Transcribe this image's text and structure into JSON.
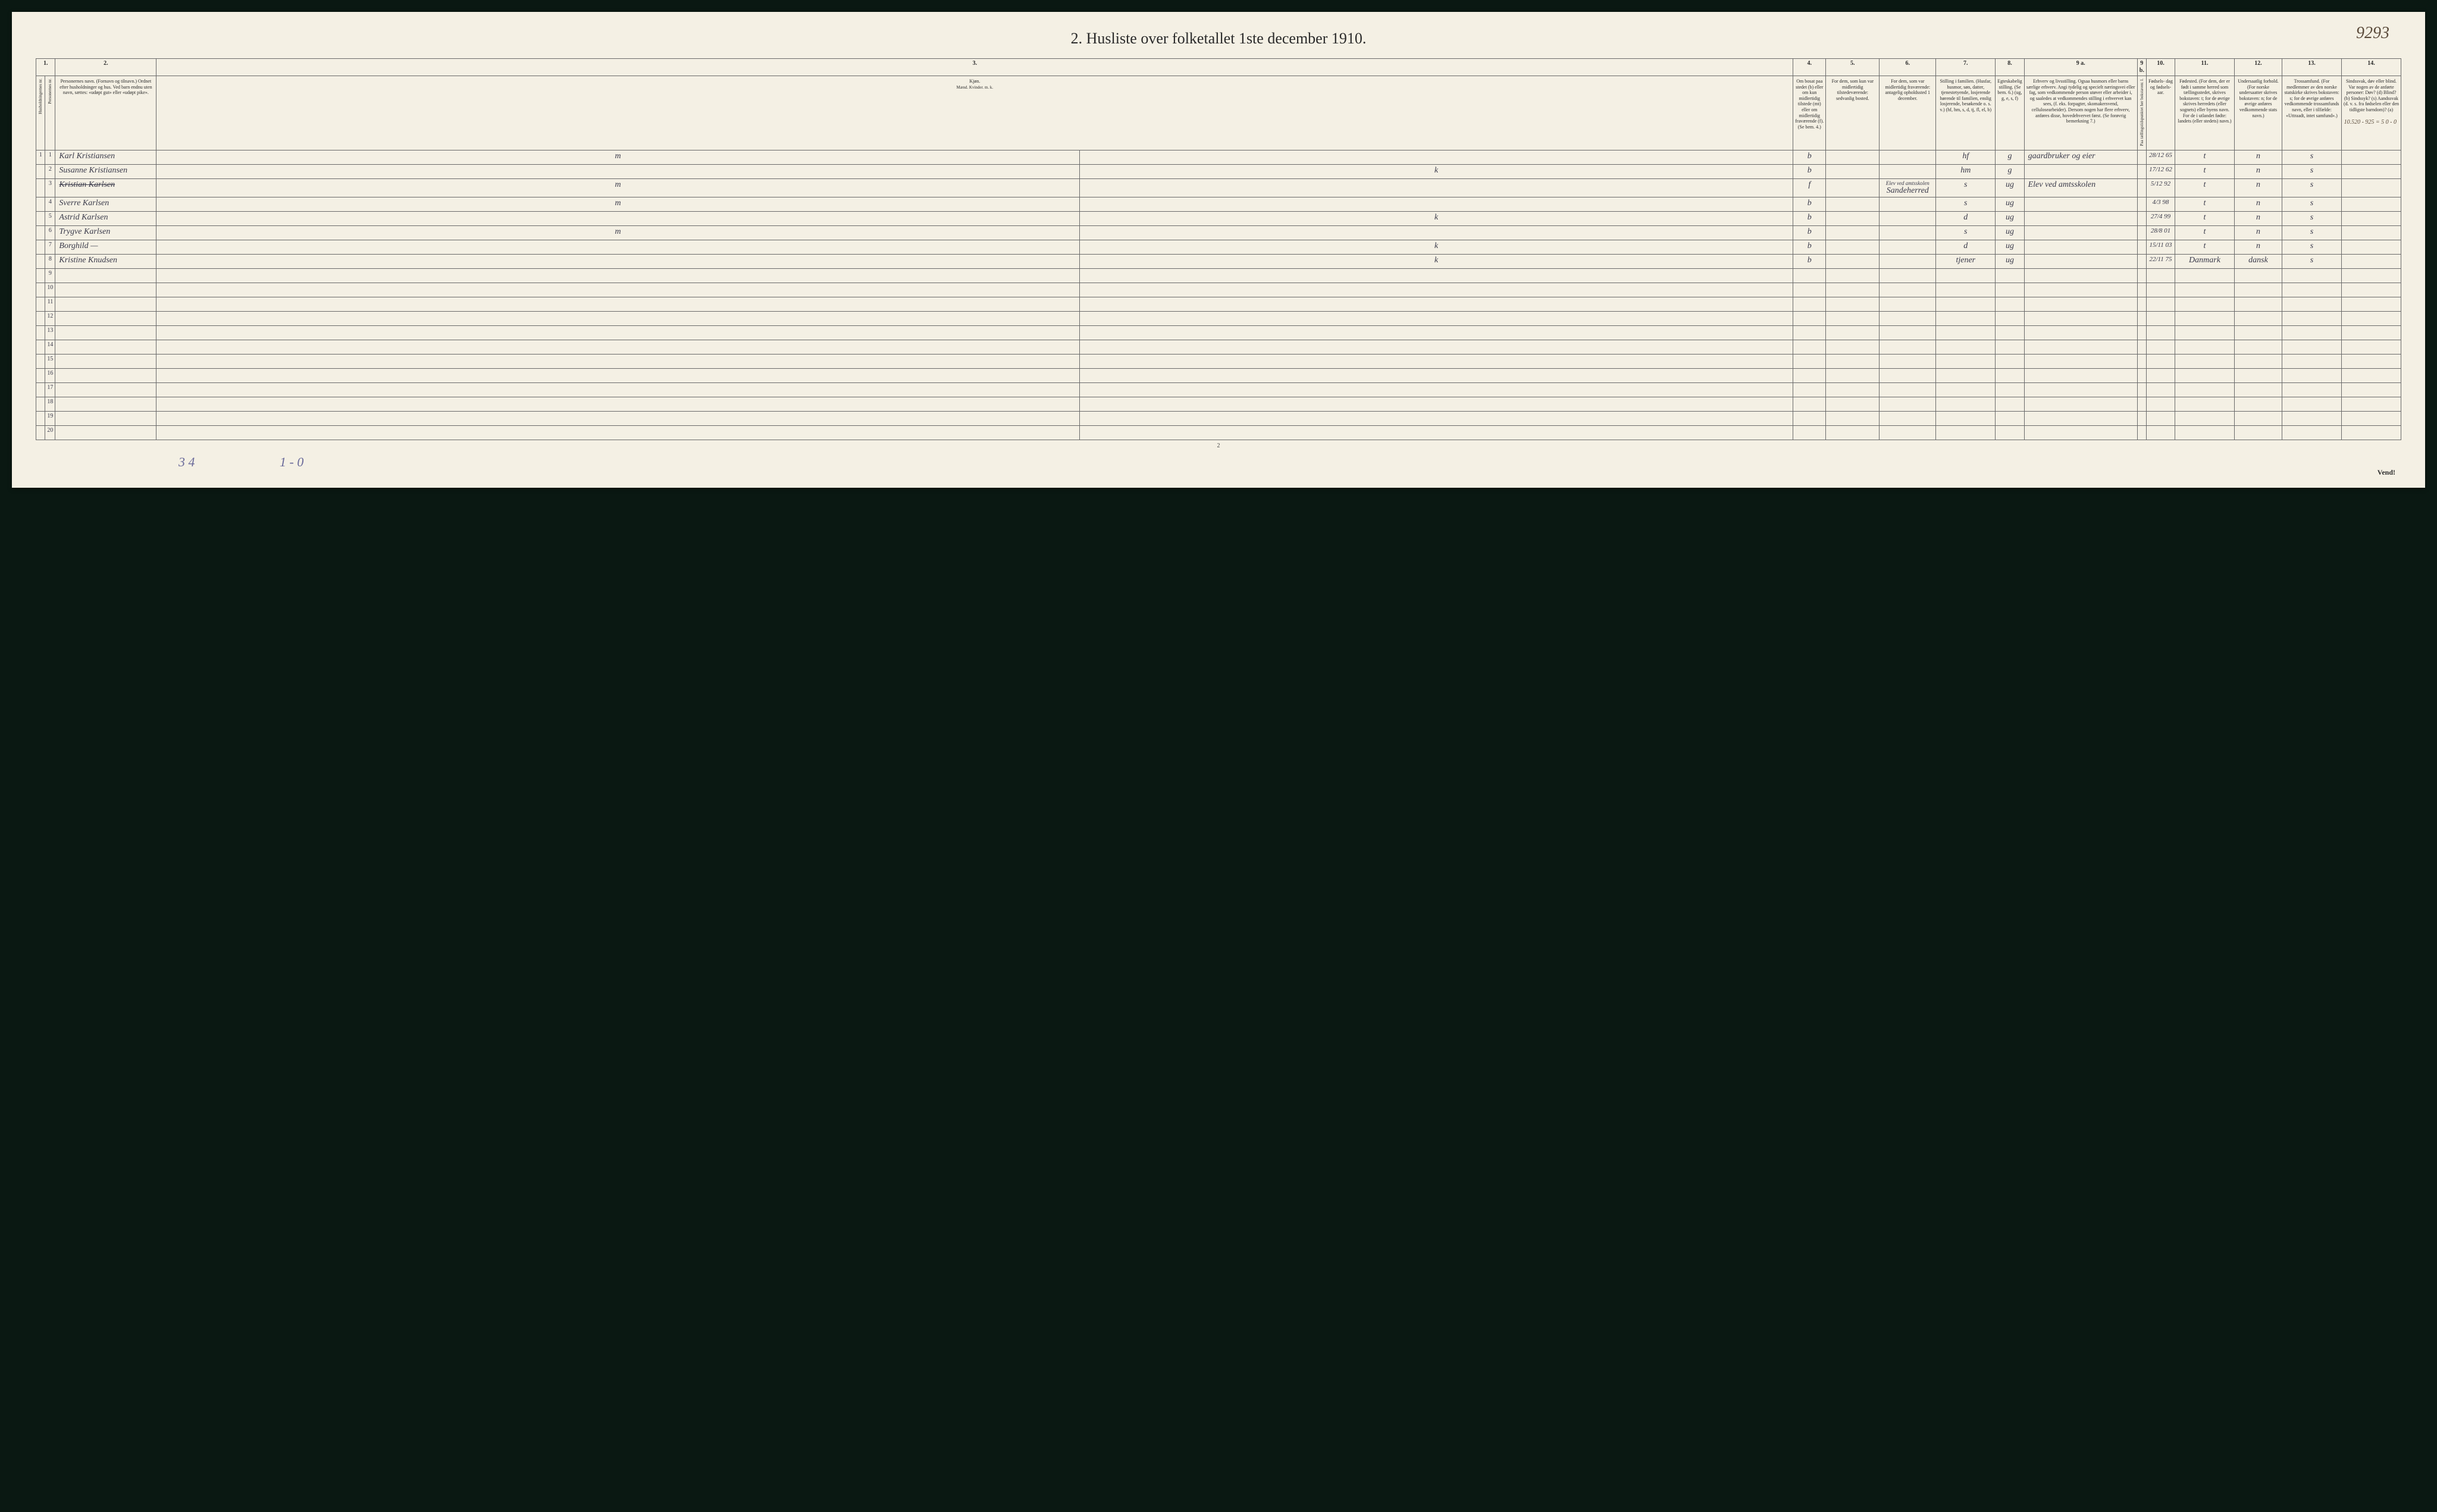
{
  "page": {
    "handwritten_number": "9293",
    "title": "2. Husliste over folketallet 1ste december 1910.",
    "small_page_num": "2",
    "vend": "Vend!",
    "bottom_hand_1": "3 4",
    "bottom_hand_2": "1 - 0",
    "margin_calc": "10.520 - 925 = 5\n0 - 0"
  },
  "columns": {
    "nums": [
      "1.",
      "2.",
      "3.",
      "4.",
      "5.",
      "6.",
      "7.",
      "8.",
      "9 a.",
      "9 b.",
      "10.",
      "11.",
      "12.",
      "13.",
      "14."
    ],
    "h1_vert": "Husholdningernes nr.",
    "h1b_vert": "Personernes nr.",
    "h2": "Personernes navn.\n(Fornavn og tilnavn.)\nOrdnet efter husholdninger og hus.\nVed barn endnu uten navn, sættes: «udøpt gut» eller «udøpt pike».",
    "h3": "Kjøn.",
    "h3_sub": "Mænd.  Kvinder.\nm.   k.",
    "h4": "Om bosat paa stedet (b) eller om kun midlertidig tilstede (mt) eller om midlertidig fraværende (f).\n(Se bem. 4.)",
    "h5": "For dem, som kun var midlertidig tilstedeværende:\nsedvanlig bosted.",
    "h6": "For dem, som var midlertidig fraværende:\nantagelig opholdssted 1 december.",
    "h7": "Stilling i familien.\n(Husfar, husmor, søn, datter, tjenestetyende, losjerende hørende til familien, enslig losjerende, besøkende o. s. v.)\n(hf, hm, s, d, tj, fl, el, b)",
    "h8": "Egteskabelig stilling.\n(Se bem. 6.)\n(ug, g, e, s, f)",
    "h9a": "Erhverv og livsstilling.\nOgsaa husmors eller barns særlige erhverv. Angi tydelig og specielt næringsvei eller fag, som vedkommende person utøver eller arbeider i, og saaledes at vedkommendes stilling i erhvervet kan sees, (f. eks. forpagter, skomakersvend, cellulosearbeider). Dersom nogen har flere erhverv, anføres disse, hovedehvervet først.\n(Se forøvrig bemerkning 7.)",
    "h9b_vert": "Paa tællingstidspunktet her bokstaven: l.",
    "h10": "Fødsels-\ndag\nog\nfødsels-\naar.",
    "h11": "Fødested.\n(For dem, der er født i samme herred som tællingsstedet, skrives bokstaven: t; for de øvrige skrives herredets (eller sognets) eller byens navn. For de i utlandet fødte: landets (eller stedets) navn.)",
    "h12": "Undersaatlig forhold.\n(For norske undersaatter skrives bokstaven: n; for de øvrige anføres vedkommende stats navn.)",
    "h13": "Trossamfund.\n(For medlemmer av den norske statskirke skrives bokstaven: s; for de øvrige anføres vedkommende trossamfunds navn, eller i tilfælde: «Uttraadt, intet samfund».)",
    "h14": "Sindssvak, døv eller blind.\nVar nogen av de anførte personer:\nDøv?   (d)\nBlind?  (b)\nSindssyk? (s)\nAandssvak (d. v. s. fra fødselen eller den tidligste barndom)? (a)"
  },
  "rows": [
    {
      "hnr": "1",
      "pnr": "1",
      "name": "Karl Kristiansen",
      "m": "m",
      "k": "",
      "bosat": "b",
      "c5": "",
      "c6": "",
      "c7": "hf",
      "c8": "g",
      "c9a": "gaardbruker og eier",
      "c9b": "",
      "c10": "28/12 65",
      "c11": "t",
      "c12": "n",
      "c13": "s",
      "c14": ""
    },
    {
      "hnr": "",
      "pnr": "2",
      "name": "Susanne Kristiansen",
      "m": "",
      "k": "k",
      "bosat": "b",
      "c5": "",
      "c6": "",
      "c7": "hm",
      "c8": "g",
      "c9a": "",
      "c9b": "",
      "c10": "17/12 62",
      "c11": "t",
      "c12": "n",
      "c13": "s",
      "c14": ""
    },
    {
      "hnr": "",
      "pnr": "3",
      "name": "Kristian Karlsen",
      "m": "m",
      "k": "",
      "bosat": "f",
      "c5": "",
      "c6": "Sandeherred",
      "c7": "s",
      "c8": "ug",
      "c9a": "Elev ved amtsskolen",
      "c9b": "",
      "c10": "5/12 92",
      "c11": "t",
      "c12": "n",
      "c13": "s",
      "c14": "",
      "struck": true,
      "c6_note": "Elev ved amtsskolen"
    },
    {
      "hnr": "",
      "pnr": "4",
      "name": "Sverre Karlsen",
      "m": "m",
      "k": "",
      "bosat": "b",
      "c5": "",
      "c6": "",
      "c7": "s",
      "c8": "ug",
      "c9a": "",
      "c9b": "",
      "c10": "4/3 98",
      "c11": "t",
      "c12": "n",
      "c13": "s",
      "c14": ""
    },
    {
      "hnr": "",
      "pnr": "5",
      "name": "Astrid Karlsen",
      "m": "",
      "k": "k",
      "bosat": "b",
      "c5": "",
      "c6": "",
      "c7": "d",
      "c8": "ug",
      "c9a": "",
      "c9b": "",
      "c10": "27/4 99",
      "c11": "t",
      "c12": "n",
      "c13": "s",
      "c14": ""
    },
    {
      "hnr": "",
      "pnr": "6",
      "name": "Trygve Karlsen",
      "m": "m",
      "k": "",
      "bosat": "b",
      "c5": "",
      "c6": "",
      "c7": "s",
      "c8": "ug",
      "c9a": "",
      "c9b": "",
      "c10": "28/8 01",
      "c11": "t",
      "c12": "n",
      "c13": "s",
      "c14": ""
    },
    {
      "hnr": "",
      "pnr": "7",
      "name": "Borghild     —",
      "m": "",
      "k": "k",
      "bosat": "b",
      "c5": "",
      "c6": "",
      "c7": "d",
      "c8": "ug",
      "c9a": "",
      "c9b": "",
      "c10": "15/11 03",
      "c11": "t",
      "c12": "n",
      "c13": "s",
      "c14": ""
    },
    {
      "hnr": "",
      "pnr": "8",
      "name": "Kristine Knudsen",
      "m": "",
      "k": "k",
      "bosat": "b",
      "c5": "",
      "c6": "",
      "c7": "tjener",
      "c8": "ug",
      "c9a": "",
      "c9b": "",
      "c10": "22/11 75",
      "c11": "Danmark",
      "c12": "dansk",
      "c13": "s",
      "c14": ""
    }
  ],
  "empty_rows": [
    9,
    10,
    11,
    12,
    13,
    14,
    15,
    16,
    17,
    18,
    19,
    20
  ],
  "style": {
    "background": "#f4f0e4",
    "border_color": "#6a6a6a",
    "handwriting_color": "#3a3a4a",
    "print_color": "#2a2a2a",
    "title_fontsize": 26,
    "header_fontsize": 8,
    "data_fontsize": 14
  }
}
